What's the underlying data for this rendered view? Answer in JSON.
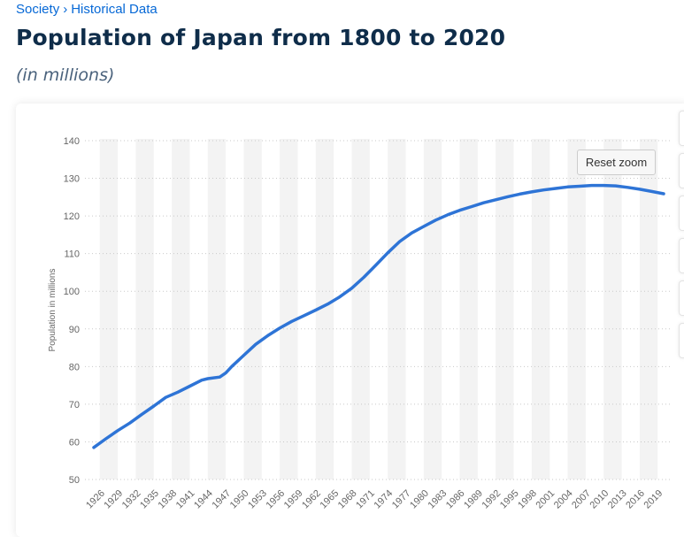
{
  "breadcrumb": {
    "parent": "Society",
    "separator": "›",
    "current": "Historical Data"
  },
  "page": {
    "title": "Population of Japan from 1800 to 2020",
    "subtitle": "(in millions)"
  },
  "controls": {
    "reset_zoom_label": "Reset zoom"
  },
  "colors": {
    "line": "#2e74d6",
    "band": "#f3f3f3",
    "title": "#0f2d4a",
    "link": "#0668d6"
  },
  "chart_data": {
    "type": "line",
    "title": "",
    "xlabel": "",
    "ylabel": "Population in millions",
    "ylim": [
      50,
      140
    ],
    "yticks": [
      50,
      60,
      70,
      80,
      90,
      100,
      110,
      120,
      130,
      140
    ],
    "xlim": [
      1925,
      2020
    ],
    "xticks": [
      1926,
      1929,
      1932,
      1935,
      1938,
      1941,
      1944,
      1947,
      1950,
      1953,
      1956,
      1959,
      1962,
      1965,
      1968,
      1971,
      1974,
      1977,
      1980,
      1983,
      1986,
      1989,
      1992,
      1995,
      1998,
      2001,
      2004,
      2007,
      2010,
      2013,
      2016,
      2019
    ],
    "grid": true,
    "legend": "none",
    "series": [
      {
        "name": "",
        "x": [
          1925,
          1927,
          1929,
          1931,
          1933,
          1935,
          1937,
          1939,
          1941,
          1943,
          1944,
          1946,
          1947,
          1948,
          1950,
          1952,
          1954,
          1956,
          1958,
          1960,
          1962,
          1964,
          1966,
          1968,
          1970,
          1972,
          1974,
          1976,
          1978,
          1980,
          1982,
          1984,
          1986,
          1988,
          1990,
          1992,
          1994,
          1996,
          1998,
          2000,
          2002,
          2004,
          2006,
          2008,
          2010,
          2012,
          2014,
          2016,
          2018,
          2020
        ],
        "y": [
          58.5,
          60.8,
          63.0,
          65.0,
          67.3,
          69.5,
          71.8,
          73.2,
          74.8,
          76.4,
          76.8,
          77.2,
          78.3,
          80.0,
          83.0,
          85.9,
          88.2,
          90.2,
          92.0,
          93.5,
          95.0,
          96.6,
          98.5,
          100.8,
          103.7,
          106.9,
          110.2,
          113.2,
          115.5,
          117.2,
          118.9,
          120.3,
          121.5,
          122.5,
          123.5,
          124.3,
          125.1,
          125.8,
          126.4,
          126.9,
          127.3,
          127.7,
          127.9,
          128.1,
          128.1,
          128.0,
          127.6,
          127.1,
          126.5,
          125.9
        ]
      }
    ]
  }
}
